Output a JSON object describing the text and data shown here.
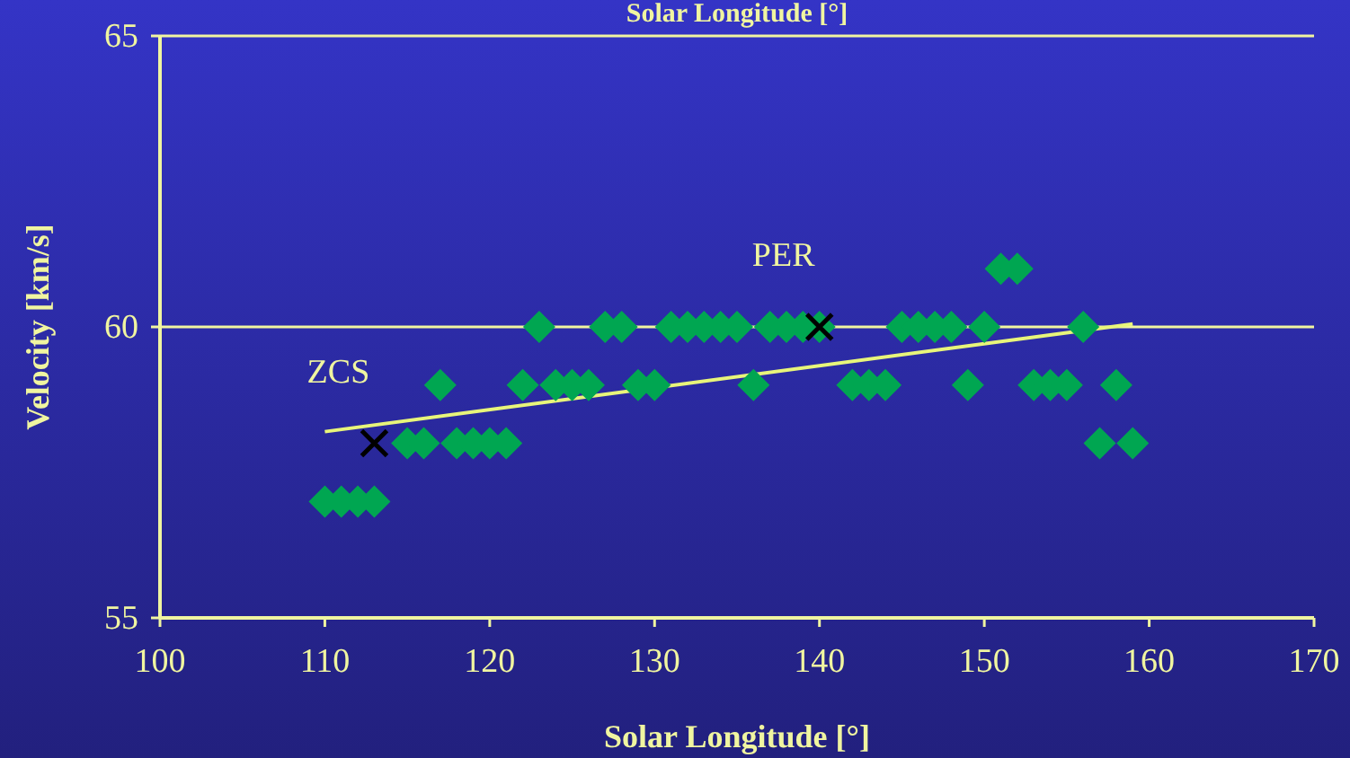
{
  "chart_data": {
    "type": "scatter",
    "title": "Solar Longitude [°]",
    "xlabel": "Solar Longitude [°]",
    "ylabel": "Velocity [km/s]",
    "xlim": [
      100,
      170
    ],
    "xticks": [
      100,
      110,
      120,
      130,
      140,
      150,
      160,
      170
    ],
    "ylim": [
      55,
      65
    ],
    "yticks": [
      55,
      60,
      65
    ],
    "ref_lines": [
      {
        "axis": "y",
        "value": 60,
        "color": "#f0f5a0"
      }
    ],
    "series": [
      {
        "color": "#00a651",
        "marker": "diamond",
        "x": [
          110,
          111,
          112,
          113,
          115,
          116,
          118,
          119,
          120,
          121,
          157,
          159,
          117,
          122,
          124,
          125,
          126,
          129,
          130,
          136,
          142,
          143,
          144,
          149,
          153,
          154,
          155,
          158,
          123,
          127,
          128,
          131,
          132,
          133,
          134,
          135,
          137,
          138,
          139,
          140,
          145,
          146,
          147,
          148,
          150,
          156,
          151,
          152
        ],
        "values": [
          57,
          57,
          57,
          57,
          58,
          58,
          58,
          58,
          58,
          58,
          58,
          58,
          59,
          59,
          59,
          59,
          59,
          59,
          59,
          59,
          59,
          59,
          59,
          59,
          59,
          59,
          59,
          59,
          60,
          60,
          60,
          60,
          60,
          60,
          60,
          60,
          60,
          60,
          60,
          60,
          60,
          60,
          60,
          60,
          60,
          60,
          61,
          61
        ]
      },
      {
        "type": "line",
        "color": "#e8f57a",
        "marker": "none",
        "x": [
          110,
          159
        ],
        "values": [
          58.2,
          60.05
        ]
      },
      {
        "color": "#000000",
        "marker": "cross",
        "x": [
          113,
          140
        ],
        "values": [
          58,
          60
        ]
      }
    ],
    "annotations": [
      {
        "text": "ZCS",
        "x": 113,
        "y": 58
      },
      {
        "text": "PER",
        "x": 140,
        "y": 60
      }
    ]
  }
}
